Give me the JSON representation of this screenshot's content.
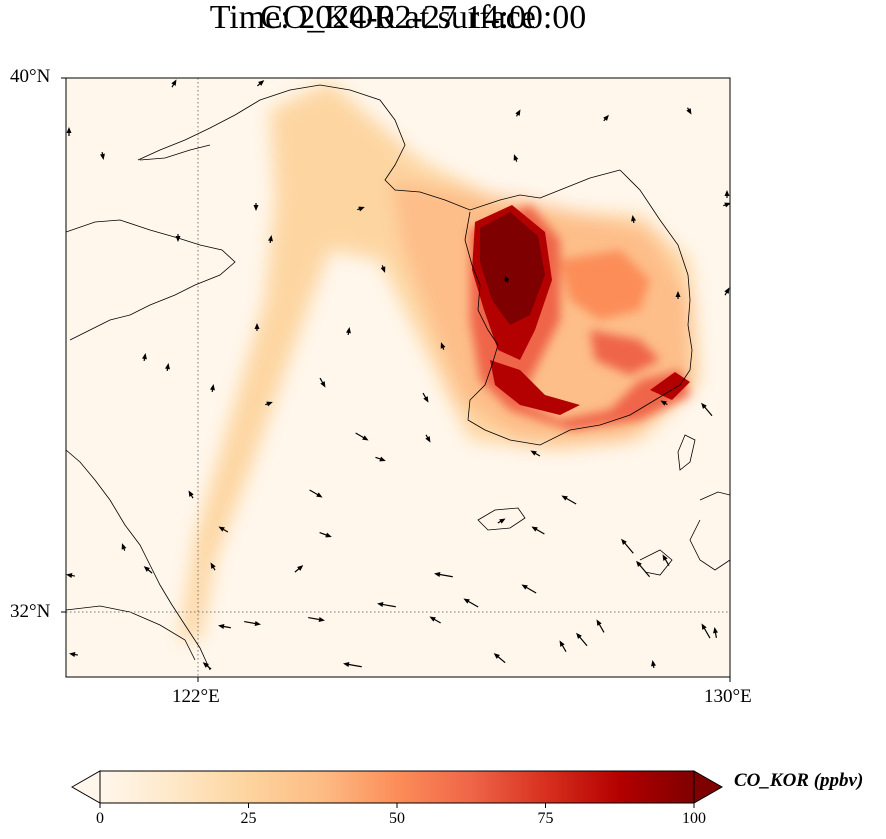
{
  "title_line1": "CO_KOR at surface",
  "title_line2": "Time: 2024-02-27 14:00:00",
  "axes": {
    "lat_labels": [
      "40°N",
      "32°N"
    ],
    "lon_labels": [
      "122°E",
      "130°E"
    ],
    "lat_range": [
      31,
      40
    ],
    "lon_range": [
      120,
      130
    ],
    "gridlines": {
      "lat": 32,
      "lon": 122,
      "style": "dotted"
    }
  },
  "colorbar": {
    "label": "CO_KOR (ppbv)",
    "ticks": [
      "0",
      "25",
      "50",
      "75",
      "100"
    ],
    "range": [
      0,
      100
    ],
    "colormap": "OrRd",
    "stops": [
      "#fff7ec",
      "#fee8c8",
      "#fdd49e",
      "#fdbb84",
      "#fc8d59",
      "#ef6548",
      "#d7301f",
      "#b30000",
      "#7f0000"
    ],
    "extend": "both"
  },
  "colors": {
    "coastline": "#000000",
    "arrow": "#000000",
    "background": "#fff7ec"
  }
}
